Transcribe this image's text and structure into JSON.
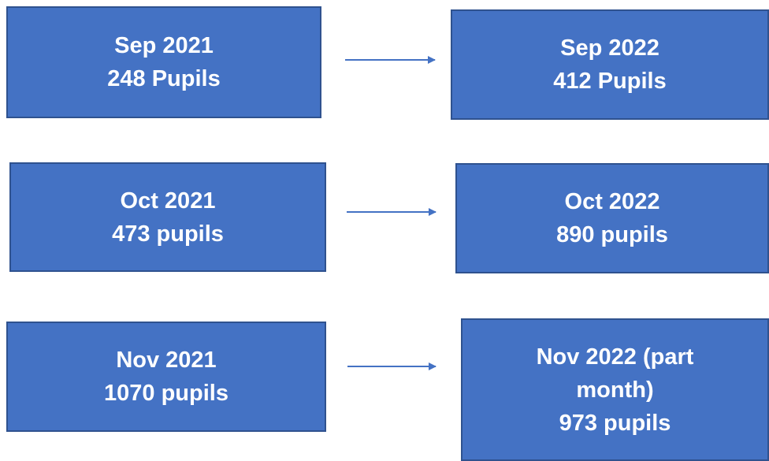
{
  "rows": [
    {
      "left": {
        "period": "Sep 2021",
        "count": "248 Pupils"
      },
      "right": {
        "period": "Sep 2022",
        "count": "412 Pupils"
      }
    },
    {
      "left": {
        "period": "Oct 2021",
        "count": "473 pupils"
      },
      "right": {
        "period": "Oct 2022",
        "count": "890 pupils"
      }
    },
    {
      "left": {
        "period": "Nov 2021",
        "count": "1070 pupils"
      },
      "right": {
        "period": "Nov 2022 (part month)",
        "count": "973 pupils"
      }
    }
  ]
}
